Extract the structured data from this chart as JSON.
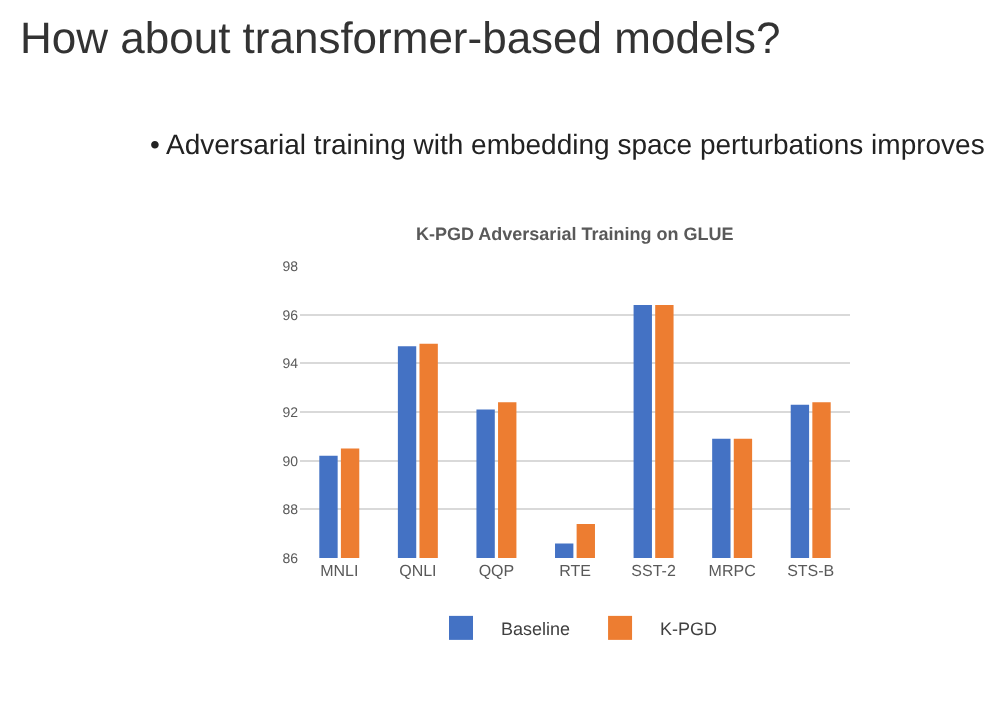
{
  "chart_data": {
    "type": "bar",
    "title": "How about transformer-based models?",
    "subtitle": "K-PGD Adversarial Training on GLUE",
    "annotations": [
      "• Adversarial training with embedding space perturbations improves"
    ],
    "categories": [
      "MNLI",
      "QNLI",
      "QQP",
      "RTE",
      "SST-2",
      "MRPC",
      "STS-B"
    ],
    "series": [
      {
        "name": "Baseline",
        "color": "#4472c4",
        "values": [
          90.2,
          94.7,
          92.1,
          86.6,
          96.4,
          90.9,
          92.3
        ]
      },
      {
        "name": "K-PGD",
        "color": "#ed7d31",
        "values": [
          90.5,
          94.8,
          92.4,
          87.4,
          96.4,
          90.9,
          92.4
        ]
      }
    ],
    "ylim": [
      86,
      98
    ],
    "yticks": [
      86,
      88,
      90,
      92,
      94,
      96,
      98
    ],
    "grid": "y",
    "legend": "bottom"
  }
}
